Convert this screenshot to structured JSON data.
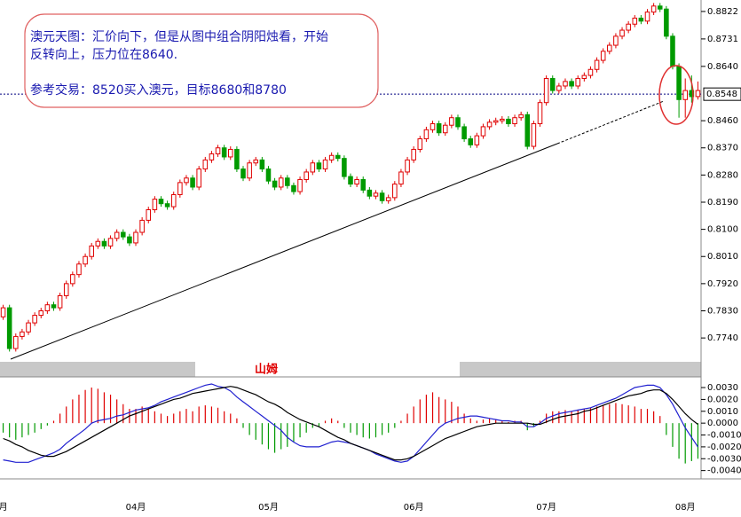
{
  "chart_data": [
    {
      "type": "candlestick",
      "categories": [
        "月",
        null,
        null,
        null,
        null,
        null,
        null,
        null,
        null,
        null,
        null,
        null,
        null,
        null,
        null,
        null,
        null,
        null,
        null,
        null,
        null,
        "04月",
        null,
        null,
        null,
        null,
        null,
        null,
        null,
        null,
        null,
        null,
        null,
        null,
        null,
        null,
        null,
        null,
        null,
        null,
        null,
        null,
        "05月",
        null,
        null,
        null,
        null,
        null,
        null,
        null,
        null,
        null,
        null,
        null,
        null,
        null,
        null,
        null,
        null,
        null,
        null,
        null,
        null,
        null,
        null,
        "06月",
        null,
        null,
        null,
        null,
        null,
        null,
        null,
        null,
        null,
        null,
        null,
        null,
        null,
        null,
        null,
        null,
        null,
        null,
        null,
        null,
        "07月",
        null,
        null,
        null,
        null,
        null,
        null,
        null,
        null,
        null,
        null,
        null,
        null,
        null,
        null,
        null,
        null,
        null,
        null,
        null,
        null,
        null,
        "08月",
        null,
        null
      ],
      "open": [
        0.781,
        0.784,
        0.7705,
        0.7745,
        0.776,
        0.779,
        0.7815,
        0.783,
        0.785,
        0.784,
        0.788,
        0.792,
        0.795,
        0.7985,
        0.801,
        0.8045,
        0.806,
        0.8045,
        0.807,
        0.809,
        0.8075,
        0.8055,
        0.809,
        0.813,
        0.8165,
        0.82,
        0.8185,
        0.8175,
        0.8215,
        0.8255,
        0.827,
        0.824,
        0.83,
        0.833,
        0.835,
        0.837,
        0.834,
        0.8365,
        0.83,
        0.827,
        0.832,
        0.833,
        0.83,
        0.826,
        0.824,
        0.827,
        0.8245,
        0.8225,
        0.8265,
        0.829,
        0.832,
        0.83,
        0.833,
        0.8345,
        0.8335,
        0.8275,
        0.825,
        0.8265,
        0.823,
        0.821,
        0.822,
        0.8195,
        0.8205,
        0.825,
        0.829,
        0.833,
        0.8365,
        0.84,
        0.843,
        0.845,
        0.842,
        0.8445,
        0.847,
        0.844,
        0.84,
        0.838,
        0.841,
        0.844,
        0.8455,
        0.846,
        0.8465,
        0.845,
        0.847,
        0.848,
        0.8375,
        0.845,
        0.852,
        0.86,
        0.856,
        0.8575,
        0.859,
        0.8575,
        0.86,
        0.861,
        0.863,
        0.866,
        0.869,
        0.871,
        0.874,
        0.876,
        0.878,
        0.88,
        0.879,
        0.882,
        0.884,
        0.883,
        0.874,
        0.864,
        0.853,
        0.856,
        0.854
      ],
      "high": [
        0.785,
        0.785,
        0.7755,
        0.777,
        0.78,
        0.7825,
        0.784,
        0.786,
        0.786,
        0.789,
        0.793,
        0.796,
        0.7995,
        0.802,
        0.8055,
        0.807,
        0.807,
        0.808,
        0.81,
        0.81,
        0.8085,
        0.81,
        0.814,
        0.8175,
        0.821,
        0.821,
        0.8195,
        0.8225,
        0.8265,
        0.828,
        0.828,
        0.831,
        0.834,
        0.836,
        0.838,
        0.838,
        0.8375,
        0.8375,
        0.831,
        0.833,
        0.834,
        0.834,
        0.831,
        0.827,
        0.828,
        0.828,
        0.8255,
        0.8275,
        0.83,
        0.833,
        0.833,
        0.834,
        0.8355,
        0.8355,
        0.8345,
        0.8285,
        0.8275,
        0.8275,
        0.824,
        0.823,
        0.823,
        0.8215,
        0.826,
        0.83,
        0.834,
        0.8375,
        0.841,
        0.844,
        0.846,
        0.846,
        0.8455,
        0.848,
        0.848,
        0.845,
        0.841,
        0.842,
        0.845,
        0.8465,
        0.847,
        0.8475,
        0.8475,
        0.848,
        0.849,
        0.849,
        0.846,
        0.853,
        0.861,
        0.861,
        0.8585,
        0.86,
        0.86,
        0.861,
        0.862,
        0.864,
        0.867,
        0.87,
        0.872,
        0.875,
        0.877,
        0.879,
        0.881,
        0.881,
        0.883,
        0.885,
        0.885,
        0.884,
        0.875,
        0.865,
        0.86,
        0.861,
        0.859
      ],
      "low": [
        0.78,
        0.7695,
        0.7695,
        0.7735,
        0.775,
        0.778,
        0.7805,
        0.782,
        0.783,
        0.783,
        0.787,
        0.791,
        0.794,
        0.7975,
        0.8,
        0.8035,
        0.8035,
        0.8035,
        0.806,
        0.8065,
        0.8045,
        0.8045,
        0.808,
        0.812,
        0.8155,
        0.8175,
        0.8165,
        0.8165,
        0.8205,
        0.8245,
        0.823,
        0.823,
        0.829,
        0.832,
        0.834,
        0.833,
        0.833,
        0.829,
        0.826,
        0.826,
        0.831,
        0.829,
        0.825,
        0.823,
        0.823,
        0.8235,
        0.8215,
        0.8215,
        0.8255,
        0.828,
        0.829,
        0.829,
        0.832,
        0.8325,
        0.8265,
        0.824,
        0.824,
        0.822,
        0.82,
        0.82,
        0.8185,
        0.8185,
        0.8195,
        0.824,
        0.828,
        0.832,
        0.8355,
        0.839,
        0.842,
        0.841,
        0.841,
        0.8435,
        0.843,
        0.839,
        0.837,
        0.837,
        0.84,
        0.843,
        0.8445,
        0.845,
        0.844,
        0.844,
        0.846,
        0.8365,
        0.8365,
        0.844,
        0.851,
        0.855,
        0.855,
        0.8565,
        0.8565,
        0.8565,
        0.859,
        0.86,
        0.862,
        0.865,
        0.868,
        0.87,
        0.873,
        0.875,
        0.877,
        0.878,
        0.878,
        0.881,
        0.882,
        0.873,
        0.863,
        0.847,
        0.847,
        0.852,
        0.853
      ],
      "close": [
        0.784,
        0.7705,
        0.7745,
        0.776,
        0.779,
        0.7815,
        0.783,
        0.785,
        0.784,
        0.788,
        0.792,
        0.795,
        0.7985,
        0.801,
        0.8045,
        0.806,
        0.8045,
        0.807,
        0.809,
        0.8075,
        0.8055,
        0.809,
        0.813,
        0.8165,
        0.82,
        0.8185,
        0.8175,
        0.8215,
        0.8255,
        0.827,
        0.824,
        0.83,
        0.833,
        0.835,
        0.837,
        0.834,
        0.8365,
        0.83,
        0.827,
        0.832,
        0.833,
        0.83,
        0.826,
        0.824,
        0.827,
        0.8245,
        0.8225,
        0.8265,
        0.829,
        0.832,
        0.83,
        0.833,
        0.8345,
        0.8335,
        0.8275,
        0.825,
        0.8265,
        0.823,
        0.821,
        0.822,
        0.8195,
        0.8205,
        0.825,
        0.829,
        0.833,
        0.8365,
        0.84,
        0.843,
        0.845,
        0.842,
        0.8445,
        0.847,
        0.844,
        0.84,
        0.838,
        0.841,
        0.844,
        0.8455,
        0.846,
        0.8465,
        0.845,
        0.847,
        0.848,
        0.8375,
        0.845,
        0.852,
        0.86,
        0.856,
        0.8575,
        0.859,
        0.8575,
        0.86,
        0.861,
        0.863,
        0.866,
        0.869,
        0.871,
        0.874,
        0.876,
        0.878,
        0.88,
        0.879,
        0.882,
        0.884,
        0.883,
        0.874,
        0.864,
        0.853,
        0.856,
        0.854,
        0.856
      ],
      "up_color": "#e00000",
      "down_color": "#009a00",
      "ylim": [
        0.7661,
        0.886
      ],
      "yticks": [
        0.8822,
        0.8731,
        {
          "value": 0.864,
          "label": "0.8640"
        },
        {
          "value": 0.846,
          "label": "0.8460"
        },
        {
          "value": 0.837,
          "label": "0.8370"
        },
        {
          "value": 0.828,
          "label": "0.8280"
        },
        {
          "value": 0.819,
          "label": "0.8190"
        },
        {
          "value": 0.81,
          "label": "0.8100"
        },
        {
          "value": 0.801,
          "label": "0.8010"
        },
        {
          "value": 0.792,
          "label": "0.7920"
        },
        {
          "value": 0.783,
          "label": "0.7830"
        },
        {
          "value": 0.774,
          "label": "0.7740"
        }
      ],
      "last_price": 0.8548,
      "annotations": [
        "澳元天图：汇价向下，但是从图中组合阴阳烛看，开始",
        "反转向上，压力位在8640.",
        "参考交易：8520买入澳元，目标8680和8780"
      ]
    },
    {
      "type": "macd",
      "label": "山姆",
      "histogram": {
        "up_color": "#e00000",
        "down_color": "#009a00",
        "values": [
          -0.0008,
          -0.0012,
          -0.0014,
          -0.0012,
          -0.001,
          -0.0008,
          -0.0005,
          -0.0002,
          0.0002,
          0.0008,
          0.0014,
          0.002,
          0.0024,
          0.0028,
          0.003,
          0.0029,
          0.0026,
          0.0024,
          0.002,
          0.0016,
          0.0012,
          0.0012,
          0.0014,
          0.0012,
          0.001,
          0.0008,
          0.0006,
          0.0008,
          0.001,
          0.0012,
          0.001,
          0.0014,
          0.0015,
          0.0014,
          0.0013,
          0.001,
          0.0008,
          0.0004,
          -0.0004,
          -0.001,
          -0.0014,
          -0.0018,
          -0.0022,
          -0.0025,
          -0.0022,
          -0.002,
          -0.0016,
          -0.0012,
          -0.0008,
          -0.0004,
          -0.0003,
          0.0002,
          0.0004,
          0.0002,
          -0.0004,
          -0.0008,
          -0.001,
          -0.0012,
          -0.0013,
          -0.0012,
          -0.001,
          -0.0008,
          -0.0004,
          0.0002,
          0.0008,
          0.0014,
          0.002,
          0.0024,
          0.0026,
          0.0022,
          0.002,
          0.0018,
          0.0014,
          0.0008,
          0.0004,
          0.0002,
          0.0003,
          0.0004,
          0.0003,
          0.0002,
          0.0001,
          0.0002,
          0.0002,
          -0.0006,
          -0.0003,
          0.0002,
          0.0008,
          0.001,
          0.001,
          0.0011,
          0.001,
          0.0011,
          0.0012,
          0.0013,
          0.0014,
          0.0015,
          0.0016,
          0.0017,
          0.0016,
          0.0015,
          0.0014,
          0.0012,
          0.0012,
          0.001,
          0.0006,
          -0.001,
          -0.002,
          -0.003,
          -0.0034,
          -0.0032,
          -0.003
        ]
      },
      "series": [
        {
          "color": "#2020d0",
          "values": [
            -0.0031,
            -0.0032,
            -0.0033,
            -0.0033,
            -0.0033,
            -0.0031,
            -0.0029,
            -0.0027,
            -0.0025,
            -0.0022,
            -0.0017,
            -0.0013,
            -0.0009,
            -0.0005,
            0.0,
            0.0002,
            0.0003,
            0.0004,
            0.0006,
            0.0007,
            0.0009,
            0.0011,
            0.0012,
            0.0013,
            0.0015,
            0.0018,
            0.002,
            0.0022,
            0.0024,
            0.0026,
            0.0028,
            0.003,
            0.0032,
            0.0033,
            0.0031,
            0.003,
            0.0027,
            0.0022,
            0.0018,
            0.0014,
            0.001,
            0.0006,
            0.0002,
            -0.0002,
            -0.0006,
            -0.0012,
            -0.0016,
            -0.0019,
            -0.002,
            -0.002,
            -0.002,
            -0.0018,
            -0.0016,
            -0.0015,
            -0.0016,
            -0.0017,
            -0.0019,
            -0.0021,
            -0.0023,
            -0.0026,
            -0.0028,
            -0.003,
            -0.0032,
            -0.0033,
            -0.0032,
            -0.0028,
            -0.0022,
            -0.0016,
            -0.001,
            -0.0004,
            0.0,
            0.0002,
            0.0004,
            0.0005,
            0.0006,
            0.0006,
            0.0005,
            0.0004,
            0.0003,
            0.0002,
            0.0002,
            0.0001,
            0.0001,
            -0.0003,
            -0.0003,
            0.0,
            0.0004,
            0.0006,
            0.0008,
            0.0009,
            0.001,
            0.0011,
            0.0012,
            0.0013,
            0.0015,
            0.0017,
            0.0019,
            0.0021,
            0.0024,
            0.0027,
            0.003,
            0.0031,
            0.0032,
            0.0032,
            0.003,
            0.0024,
            0.0016,
            0.0006,
            -0.0004,
            -0.0012,
            -0.002
          ]
        },
        {
          "color": "#000000",
          "values": [
            -0.0013,
            -0.0015,
            -0.0018,
            -0.002,
            -0.0023,
            -0.0025,
            -0.0027,
            -0.0028,
            -0.0028,
            -0.0026,
            -0.0024,
            -0.0021,
            -0.0018,
            -0.0015,
            -0.0012,
            -0.0009,
            -0.0006,
            -0.0003,
            0.0,
            0.0003,
            0.0006,
            0.0008,
            0.001,
            0.0012,
            0.0014,
            0.0016,
            0.0018,
            0.002,
            0.0021,
            0.0023,
            0.0025,
            0.0026,
            0.0027,
            0.0028,
            0.0029,
            0.003,
            0.0031,
            0.003,
            0.0028,
            0.0026,
            0.0024,
            0.0021,
            0.0018,
            0.0016,
            0.0013,
            0.0009,
            0.0006,
            0.0003,
            0.0001,
            -0.0001,
            -0.0003,
            -0.0006,
            -0.0009,
            -0.0012,
            -0.0014,
            -0.0017,
            -0.0019,
            -0.0021,
            -0.0023,
            -0.0025,
            -0.0027,
            -0.0029,
            -0.0031,
            -0.0031,
            -0.003,
            -0.0028,
            -0.0025,
            -0.0022,
            -0.0019,
            -0.0016,
            -0.0013,
            -0.0011,
            -0.0009,
            -0.0007,
            -0.0005,
            -0.0003,
            -0.0002,
            -0.0001,
            0.0,
            0.0,
            0.0,
            0.0,
            0.0,
            0.0,
            -0.0001,
            -0.0001,
            0.0001,
            0.0003,
            0.0005,
            0.0006,
            0.0007,
            0.0008,
            0.001,
            0.0011,
            0.0013,
            0.0015,
            0.0017,
            0.0019,
            0.0021,
            0.0023,
            0.0024,
            0.0025,
            0.0027,
            0.0028,
            0.0028,
            0.0025,
            0.002,
            0.0014,
            0.0008,
            0.0003,
            -0.0001
          ]
        }
      ],
      "ylim": [
        -0.0047,
        0.0039
      ],
      "yticks": [
        {
          "value": 0.003,
          "label": "0.0030"
        },
        {
          "value": 0.002,
          "label": "0.0020"
        },
        {
          "value": 0.001,
          "label": "0.0010"
        },
        {
          "value": 0.0,
          "label": "0.0000"
        },
        {
          "value": -0.001,
          "label": "-0.0010"
        },
        {
          "value": -0.002,
          "label": "-0.0020"
        },
        {
          "value": -0.003,
          "label": "-0.0030"
        },
        {
          "value": -0.004,
          "label": "-0.0040"
        }
      ]
    }
  ]
}
